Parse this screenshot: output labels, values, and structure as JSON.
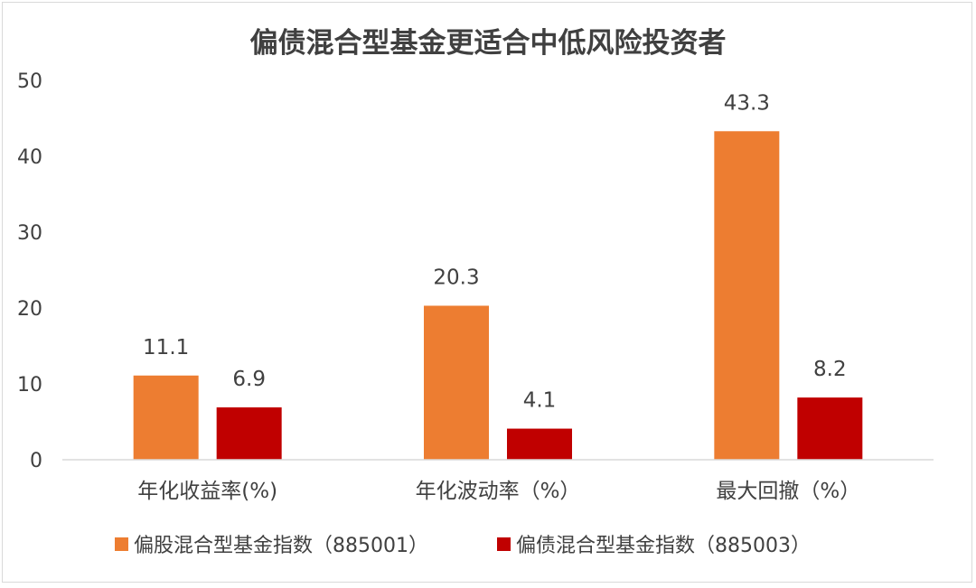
{
  "chart_data": {
    "type": "bar",
    "title": "偏债混合型基金更适合中低风险投资者",
    "categories": [
      "年化收益率(%)",
      "年化波动率（%）",
      "最大回撤（%）"
    ],
    "series": [
      {
        "name": "偏股混合型基金指数（885001）",
        "values": [
          11.1,
          20.3,
          43.3
        ],
        "color": "#ED7D31"
      },
      {
        "name": "偏债混合型基金指数（885003）",
        "values": [
          6.9,
          4.1,
          8.2
        ],
        "color": "#C00000"
      }
    ],
    "ylim": [
      0,
      50
    ],
    "yticks": [
      0,
      10,
      20,
      30,
      40,
      50
    ],
    "data_labels": [
      "11.1",
      "20.3",
      "43.3",
      "6.9",
      "4.1",
      "8.2"
    ],
    "grid": false,
    "legend": "bottom"
  }
}
